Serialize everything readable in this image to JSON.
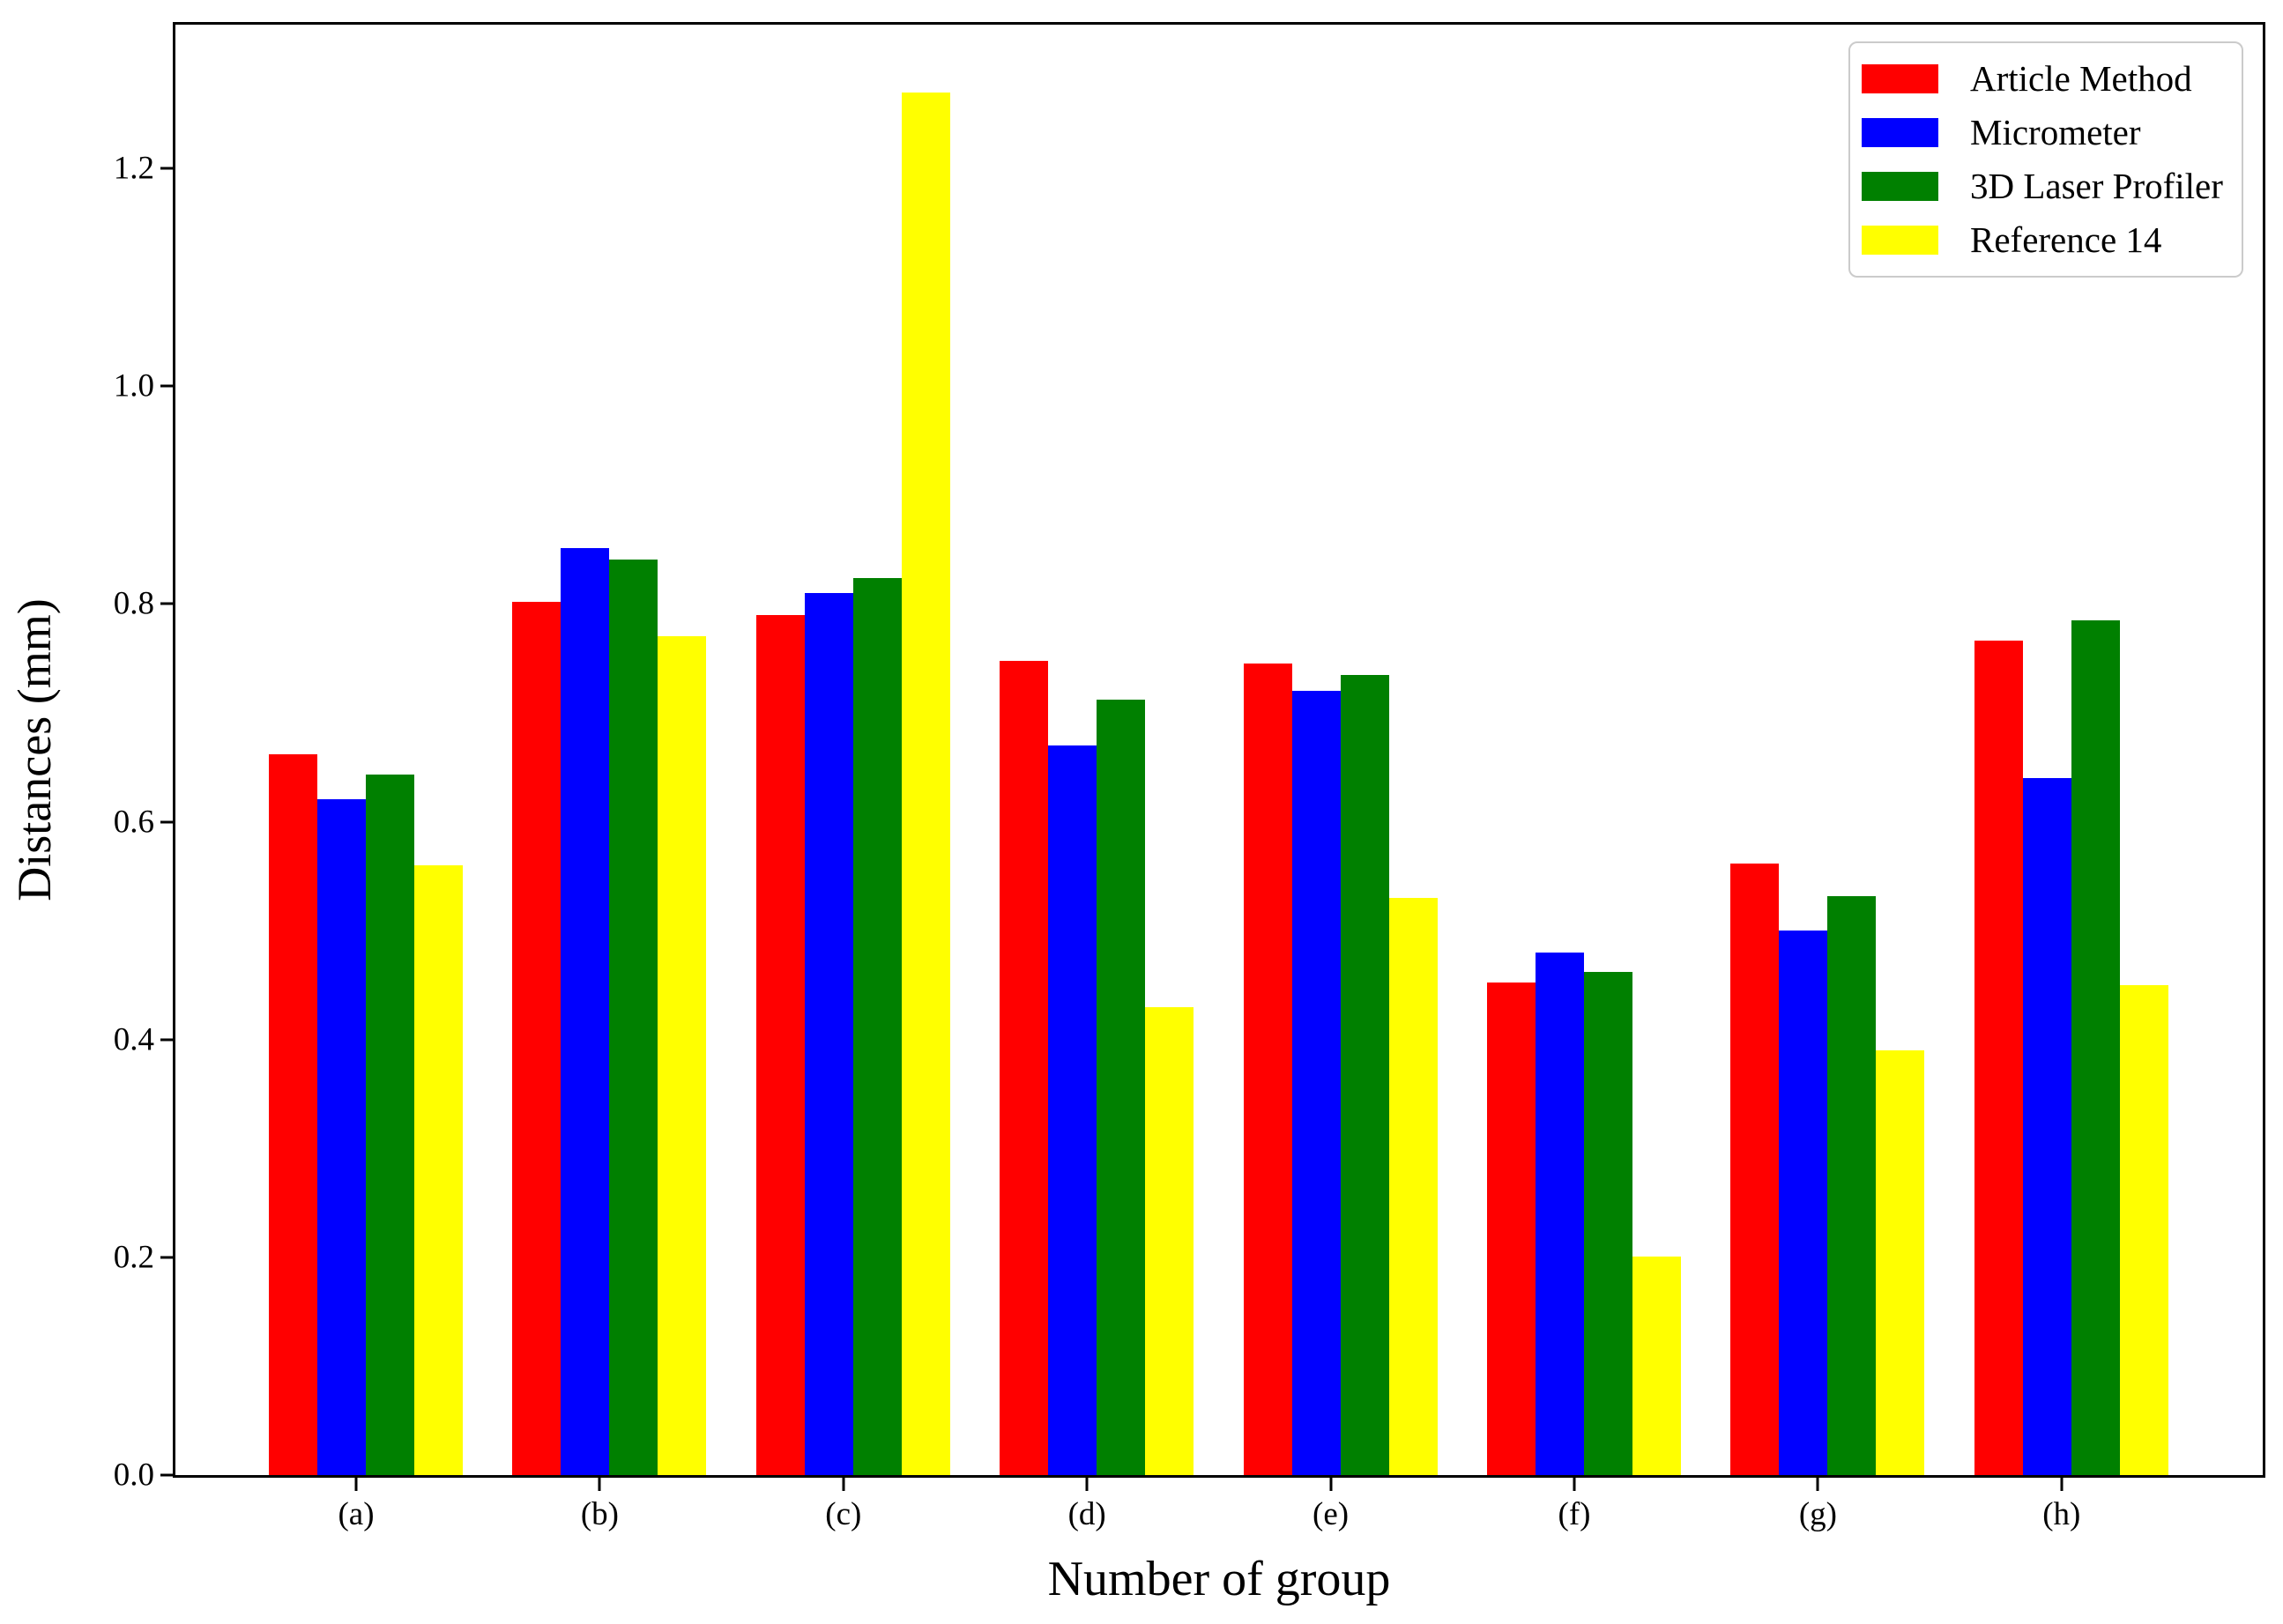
{
  "figure": {
    "background": "#ffffff",
    "xlabel": "Number of group",
    "ylabel": "Distances (mm)"
  },
  "legend": {
    "items": [
      {
        "label": "Article Method",
        "color": "#ff0000"
      },
      {
        "label": "Micrometer",
        "color": "#0000ff"
      },
      {
        "label": "3D Laser Profiler",
        "color": "#008000"
      },
      {
        "label": "Reference 14",
        "color": "#ffff00"
      }
    ]
  },
  "chart_data": {
    "type": "bar",
    "title": "",
    "xlabel": "Number of group",
    "ylabel": "Distances (mm)",
    "categories": [
      "(a)",
      "(b)",
      "(c)",
      "(d)",
      "(e)",
      "(f)",
      "(g)",
      "(h)"
    ],
    "series": [
      {
        "name": "Article Method",
        "color": "#ff0000",
        "values": [
          0.662,
          0.802,
          0.79,
          0.748,
          0.745,
          0.452,
          0.562,
          0.766
        ]
      },
      {
        "name": "Micrometer",
        "color": "#0000ff",
        "values": [
          0.621,
          0.851,
          0.81,
          0.67,
          0.72,
          0.48,
          0.5,
          0.64
        ]
      },
      {
        "name": "3D Laser Profiler",
        "color": "#008000",
        "values": [
          0.643,
          0.841,
          0.824,
          0.712,
          0.735,
          0.462,
          0.532,
          0.785
        ]
      },
      {
        "name": "Reference 14",
        "color": "#ffff00",
        "values": [
          0.56,
          0.77,
          1.27,
          0.43,
          0.53,
          0.201,
          0.39,
          0.45
        ]
      }
    ],
    "yticks": [
      0.0,
      0.2,
      0.4,
      0.6,
      0.8,
      1.0,
      1.2
    ],
    "ytick_labels": [
      "0.0",
      "0.2",
      "0.4",
      "0.6",
      "0.8",
      "1.0",
      "1.2"
    ],
    "ylim": [
      0,
      1.332
    ],
    "grid": false,
    "legend_position": "upper right"
  }
}
